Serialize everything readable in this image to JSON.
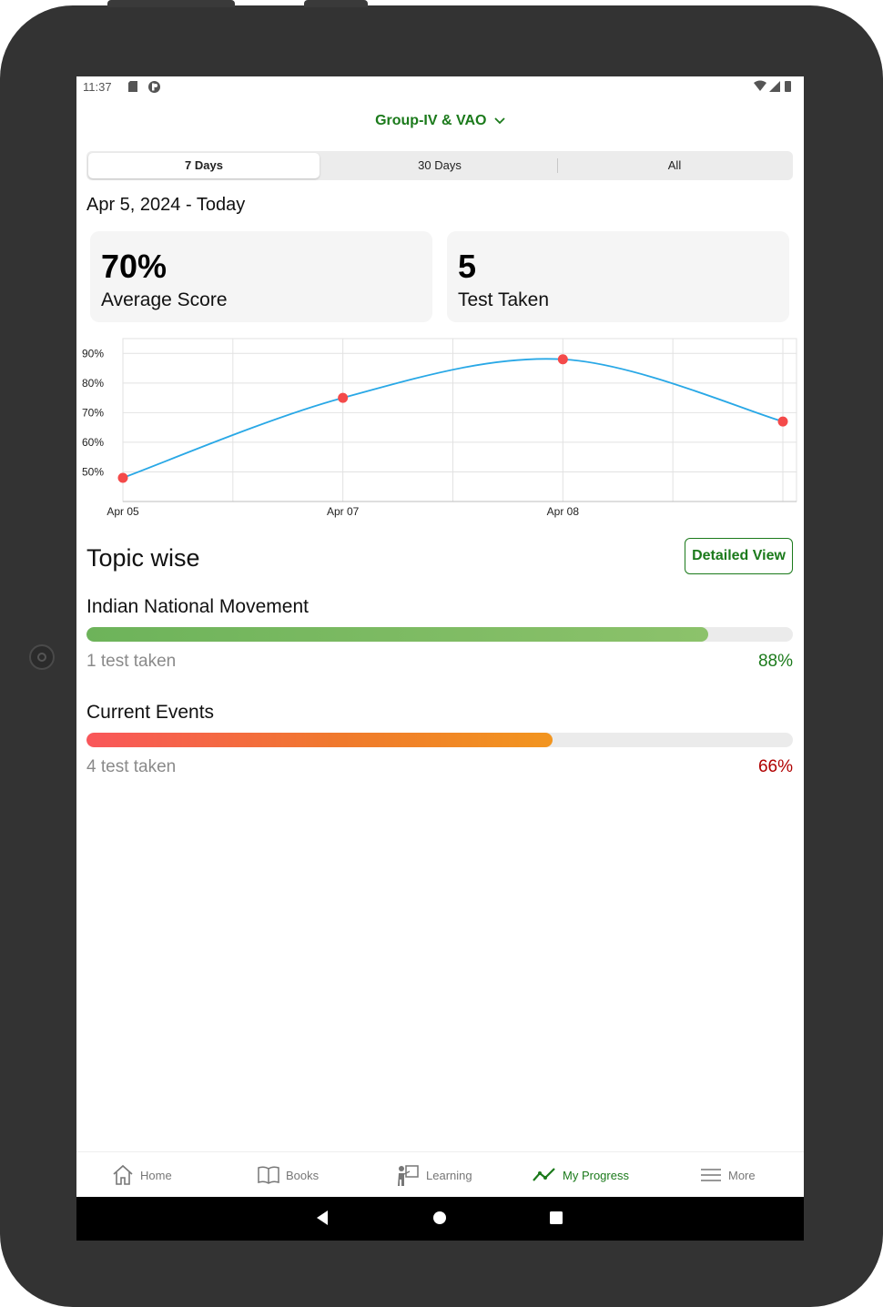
{
  "status_bar": {
    "time": "11:37"
  },
  "header": {
    "exam_selector": "Group-IV & VAO"
  },
  "period_tabs": [
    {
      "label": "7 Days",
      "active": true
    },
    {
      "label": "30 Days",
      "active": false
    },
    {
      "label": "All",
      "active": false
    }
  ],
  "date_range": "Apr 5, 2024 - Today",
  "summary_cards": {
    "average_score": {
      "value": "70%",
      "label": "Average Score"
    },
    "tests_taken": {
      "value": "5",
      "label": "Test Taken"
    }
  },
  "chart_data": {
    "type": "line",
    "x": [
      "Apr 05",
      "Apr 07",
      "Apr 08",
      ""
    ],
    "x_tick_labels": [
      "Apr 05",
      "Apr 07",
      "Apr 08"
    ],
    "series": [
      {
        "values": [
          48,
          75,
          88,
          67
        ]
      }
    ],
    "y_tick_labels": [
      "90%",
      "80%",
      "70%",
      "60%",
      "50%"
    ],
    "y_ticks": [
      90,
      80,
      70,
      60,
      50
    ],
    "ylim": [
      40,
      95
    ],
    "grid": true,
    "line_color": "#29a8e6",
    "point_color": "#f44a4a",
    "title": "",
    "xlabel": "",
    "ylabel": ""
  },
  "topic_section": {
    "title": "Topic wise",
    "detailed_view_label": "Detailed View",
    "topics": [
      {
        "name": "Indian National Movement",
        "tests": "1 test taken",
        "percent_label": "88%",
        "percent": 88,
        "color": "#1b7a1b"
      },
      {
        "name": "Current Events",
        "tests": "4 test taken",
        "percent_label": "66%",
        "percent": 66,
        "color": "#b00000"
      }
    ]
  },
  "bottom_nav": [
    {
      "label": "Home",
      "icon": "home-icon",
      "active": false
    },
    {
      "label": "Books",
      "icon": "book-icon",
      "active": false
    },
    {
      "label": "Learning",
      "icon": "learning-icon",
      "active": false
    },
    {
      "label": "My Progress",
      "icon": "progress-icon",
      "active": true
    },
    {
      "label": "More",
      "icon": "menu-icon",
      "active": false
    }
  ],
  "colors": {
    "accent": "#1b7a1b",
    "device_frame": "#333333"
  }
}
